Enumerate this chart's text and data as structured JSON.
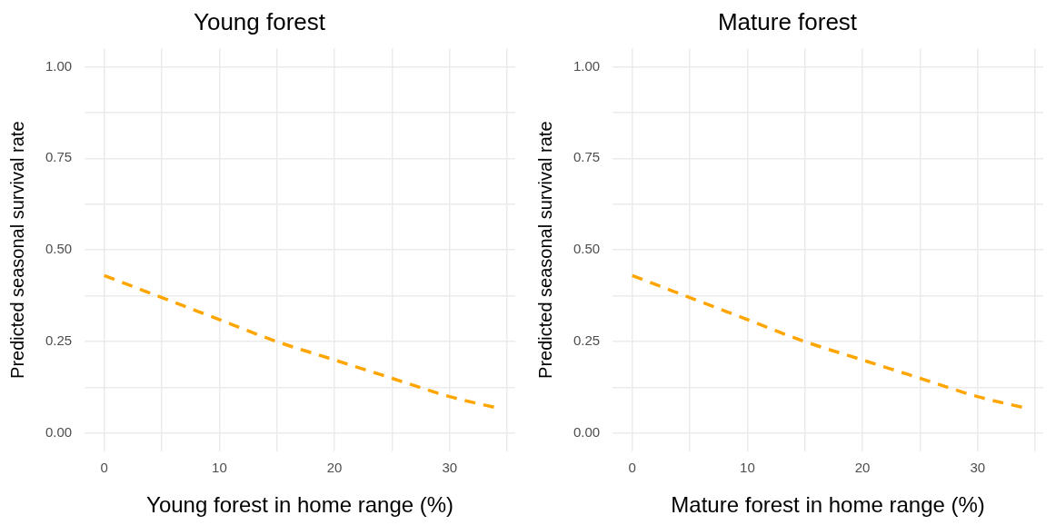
{
  "chart_data": [
    {
      "type": "line",
      "title": "Young forest",
      "xlabel": "Young forest in home range (%)",
      "ylabel": "Predicted seasonal survival rate",
      "line_style": "dashed",
      "marker": "none",
      "grid": true,
      "legend": false,
      "x": [
        0,
        5,
        10,
        15,
        20,
        25,
        30,
        34
      ],
      "series": [
        {
          "color": "#ffa500",
          "values": [
            0.43,
            0.37,
            0.31,
            0.25,
            0.2,
            0.15,
            0.1,
            0.07
          ]
        }
      ],
      "xlim": [
        -1.7,
        35.7
      ],
      "ylim": [
        -0.05,
        1.05
      ],
      "xticks": [
        0,
        {
          "value": 5,
          "label": null
        },
        10,
        {
          "value": 15,
          "label": null
        },
        20,
        {
          "value": 25,
          "label": null
        },
        30,
        {
          "value": 35,
          "label": null
        }
      ],
      "yticks": [
        {
          "value": 0,
          "label": "0.00"
        },
        {
          "value": 0.125,
          "label": null
        },
        {
          "value": 0.25,
          "label": "0.25"
        },
        {
          "value": 0.375,
          "label": null
        },
        {
          "value": 0.5,
          "label": "0.50"
        },
        {
          "value": 0.625,
          "label": null
        },
        {
          "value": 0.75,
          "label": "0.75"
        },
        {
          "value": 0.875,
          "label": null
        },
        {
          "value": 1,
          "label": "1.00"
        }
      ]
    },
    {
      "type": "line",
      "title": "Mature forest",
      "xlabel": "Mature forest in home range (%)",
      "ylabel": "Predicted seasonal survival rate",
      "line_style": "dashed",
      "marker": "none",
      "grid": true,
      "legend": false,
      "x": [
        0,
        5,
        10,
        15,
        20,
        25,
        30,
        34
      ],
      "series": [
        {
          "color": "#ffa500",
          "values": [
            0.43,
            0.37,
            0.31,
            0.25,
            0.2,
            0.15,
            0.1,
            0.07
          ]
        }
      ],
      "xlim": [
        -1.7,
        35.7
      ],
      "ylim": [
        -0.05,
        1.05
      ],
      "xticks": [
        0,
        {
          "value": 5,
          "label": null
        },
        10,
        {
          "value": 15,
          "label": null
        },
        20,
        {
          "value": 25,
          "label": null
        },
        30,
        {
          "value": 35,
          "label": null
        }
      ],
      "yticks": [
        {
          "value": 0,
          "label": "0.00"
        },
        {
          "value": 0.125,
          "label": null
        },
        {
          "value": 0.25,
          "label": "0.25"
        },
        {
          "value": 0.375,
          "label": null
        },
        {
          "value": 0.5,
          "label": "0.50"
        },
        {
          "value": 0.625,
          "label": null
        },
        {
          "value": 0.75,
          "label": "0.75"
        },
        {
          "value": 0.875,
          "label": null
        },
        {
          "value": 1,
          "label": "1.00"
        }
      ]
    }
  ]
}
